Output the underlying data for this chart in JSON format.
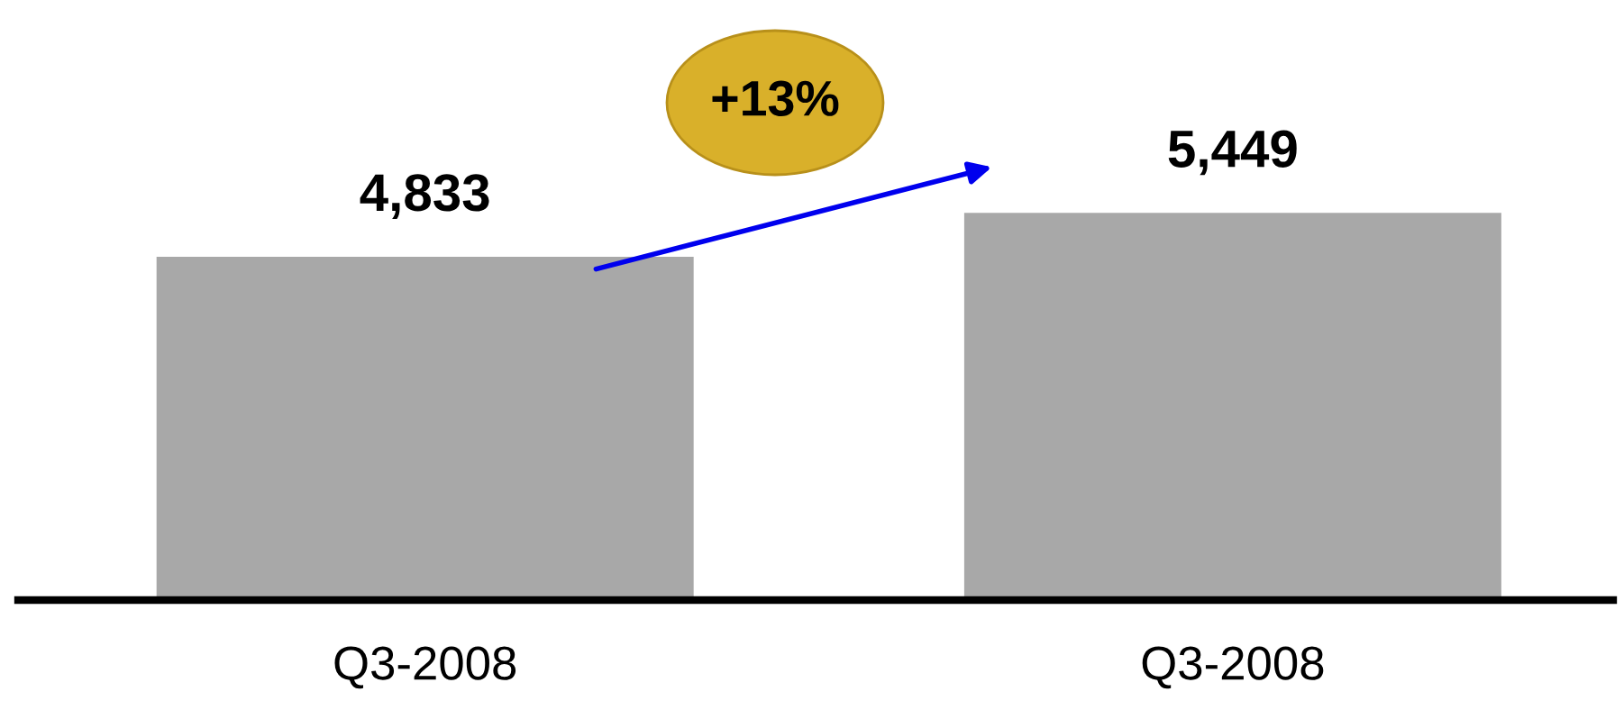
{
  "chart_data": {
    "type": "bar",
    "categories": [
      "Q3-2008",
      "Q3-2008"
    ],
    "values": [
      4833,
      5449
    ],
    "value_labels": [
      "4,833",
      "5,449"
    ],
    "color": "#a8a8a8",
    "tick_labels": "x",
    "grid": false,
    "legend": false,
    "annotations": [
      "+13%"
    ]
  }
}
